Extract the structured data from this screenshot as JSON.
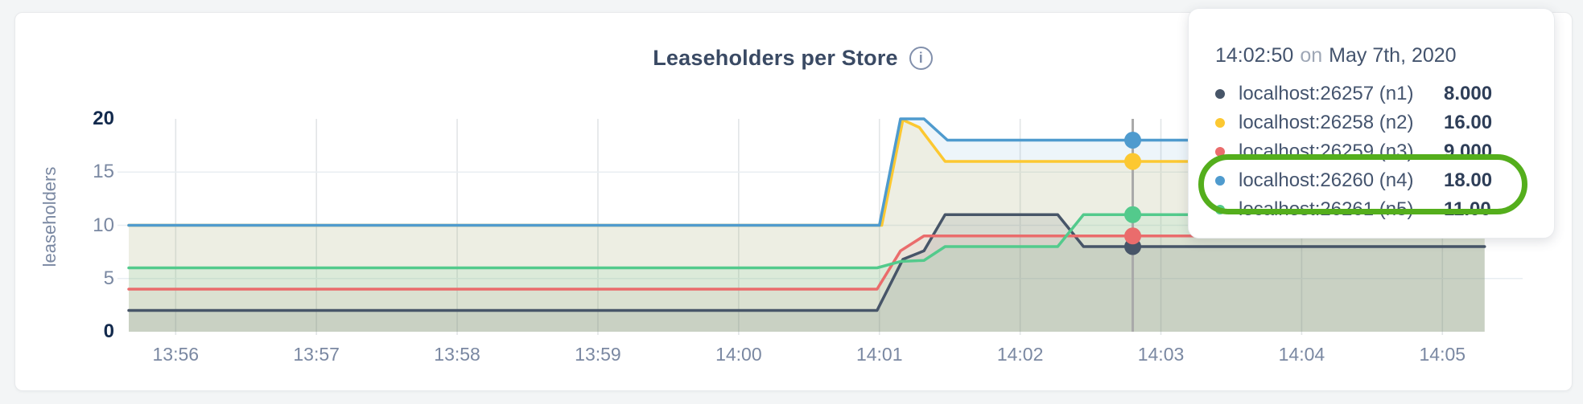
{
  "page": {
    "background": "#F3F5F6"
  },
  "header": {
    "title": "Leaseholders per Store",
    "info_icon_glyph": "i"
  },
  "chart_data": {
    "type": "line",
    "title": "Leaseholders per Store",
    "ylabel": "leaseholders",
    "ylim": [
      0,
      20
    ],
    "yticks": [
      {
        "value": 0,
        "label": "0",
        "bold": true
      },
      {
        "value": 5,
        "label": "5",
        "bold": false
      },
      {
        "value": 10,
        "label": "10",
        "bold": false
      },
      {
        "value": 15,
        "label": "15",
        "bold": false
      },
      {
        "value": 20,
        "label": "20",
        "bold": true
      }
    ],
    "ygrid_values": [
      5,
      10,
      15
    ],
    "x_start_time": "13:55:40",
    "xticks": [
      {
        "t": 20,
        "label": "13:56"
      },
      {
        "t": 80,
        "label": "13:57"
      },
      {
        "t": 140,
        "label": "13:58"
      },
      {
        "t": 200,
        "label": "13:59"
      },
      {
        "t": 260,
        "label": "14:00"
      },
      {
        "t": 320,
        "label": "14:01"
      },
      {
        "t": 380,
        "label": "14:02"
      },
      {
        "t": 440,
        "label": "14:03"
      },
      {
        "t": 500,
        "label": "14:04"
      },
      {
        "t": 560,
        "label": "14:05"
      }
    ],
    "grid": true,
    "legend_position": "tooltip",
    "series_end_s": 578,
    "series": [
      {
        "id": "n1",
        "name": "localhost:26257 (n1)",
        "color": "#475568",
        "fill_opacity": 0.14,
        "points": [
          [
            0,
            2
          ],
          [
            319,
            2
          ],
          [
            330,
            6.8
          ],
          [
            339,
            7.6
          ],
          [
            348,
            11
          ],
          [
            396,
            11
          ],
          [
            407,
            8
          ],
          [
            578,
            8
          ]
        ],
        "hover_value": 8,
        "hover_value_label": "8.000"
      },
      {
        "id": "n2",
        "name": "localhost:26258 (n2)",
        "color": "#FCC831",
        "fill_opacity": 0.12,
        "points": [
          [
            0,
            10
          ],
          [
            321,
            10
          ],
          [
            330,
            19.9
          ],
          [
            337,
            19.2
          ],
          [
            348,
            16
          ],
          [
            578,
            16
          ]
        ],
        "hover_value": 16,
        "hover_value_label": "16.00"
      },
      {
        "id": "n3",
        "name": "localhost:26259 (n3)",
        "color": "#EA6C6C",
        "fill_opacity": 0.08,
        "points": [
          [
            0,
            4
          ],
          [
            319,
            4
          ],
          [
            329,
            7.6
          ],
          [
            339,
            9
          ],
          [
            578,
            9
          ]
        ],
        "hover_value": 9,
        "hover_value_label": "9.000"
      },
      {
        "id": "n4",
        "name": "localhost:26260 (n4)",
        "color": "#4F9BCE",
        "fill_opacity": 0.1,
        "points": [
          [
            0,
            10
          ],
          [
            320,
            10
          ],
          [
            329,
            20
          ],
          [
            339,
            20
          ],
          [
            349,
            18
          ],
          [
            578,
            18
          ]
        ],
        "hover_value": 18,
        "hover_value_label": "18.00"
      },
      {
        "id": "n5",
        "name": "localhost:26261 (n5)",
        "color": "#53CA8C",
        "fill_opacity": 0.1,
        "points": [
          [
            0,
            6
          ],
          [
            319,
            6
          ],
          [
            329,
            6.6
          ],
          [
            339,
            6.7
          ],
          [
            348,
            8
          ],
          [
            396,
            8
          ],
          [
            407,
            11
          ],
          [
            578,
            11
          ]
        ],
        "hover_value": 11,
        "hover_value_label": "11.00"
      }
    ],
    "hover": {
      "t": 428,
      "line_color": "#A9A9A9",
      "dot_draw_order": [
        3,
        1,
        4,
        0,
        2
      ]
    },
    "grid_colors": {
      "vertical": "#E2E5E7",
      "horizontal": "#E8EEF2"
    }
  },
  "tooltip": {
    "time": "14:02:50",
    "conj": "on",
    "date": "May 7th, 2020",
    "annotation": {
      "color": "#54AE1C",
      "highlighted_series": [
        "n4",
        "n5"
      ]
    }
  }
}
